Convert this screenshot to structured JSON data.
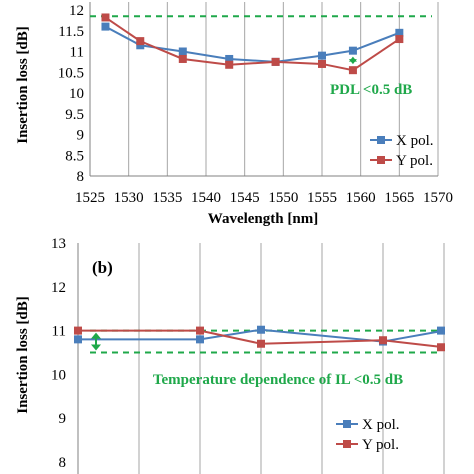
{
  "chart_data": [
    {
      "type": "line",
      "panel_label": "",
      "xlabel": "Wavelength [nm]",
      "ylabel": "Insertion loss [dB]",
      "xlim": [
        1525,
        1570
      ],
      "ylim": [
        8,
        12
      ],
      "xticks": [
        "1525",
        "1530",
        "1535",
        "1540",
        "1545",
        "1550",
        "1555",
        "1560",
        "1565",
        "1570"
      ],
      "yticks": [
        "8",
        "8.5",
        "9",
        "9.5",
        "10",
        "10.5",
        "11",
        "11.5",
        "12"
      ],
      "grid": "vertical",
      "series": [
        {
          "name": "X pol.",
          "color": "#4a7ebb",
          "marker": "square",
          "x": [
            1527,
            1531.5,
            1537,
            1543,
            1549,
            1555,
            1559,
            1565
          ],
          "y": [
            11.6,
            11.15,
            11.0,
            10.82,
            10.75,
            10.9,
            11.02,
            11.45
          ]
        },
        {
          "name": "Y pol.",
          "color": "#be4b48",
          "marker": "square",
          "x": [
            1527,
            1531.5,
            1537,
            1543,
            1549,
            1555,
            1559,
            1565
          ],
          "y": [
            11.82,
            11.25,
            10.82,
            10.68,
            10.75,
            10.7,
            10.55,
            11.3
          ]
        }
      ],
      "reference_lines": [
        11.85
      ],
      "annotation": "PDL <0.5 dB",
      "legend": "bottom-right"
    },
    {
      "type": "line",
      "panel_label": "(b)",
      "xlabel": "",
      "ylabel": "Insertion loss [dB]",
      "ylim": [
        8,
        13
      ],
      "yticks": [
        "8",
        "9",
        "10",
        "11",
        "12",
        "13"
      ],
      "grid": "vertical",
      "series": [
        {
          "name": "X pol.",
          "color": "#4a7ebb",
          "marker": "square",
          "x": [
            0,
            2,
            3,
            5,
            6
          ],
          "y": [
            10.8,
            10.8,
            11.02,
            10.75,
            11.0
          ]
        },
        {
          "name": "Y pol.",
          "color": "#be4b48",
          "marker": "square",
          "x": [
            0,
            2,
            3,
            5,
            6
          ],
          "y": [
            11.0,
            11.0,
            10.7,
            10.78,
            10.62
          ]
        }
      ],
      "reference_lines": [
        11.0,
        10.5
      ],
      "annotation": "Temperature dependence of IL <0.5 dB",
      "legend": "bottom-right"
    }
  ],
  "colors": {
    "x_series": "#4a7ebb",
    "y_series": "#be4b48",
    "reference": "#1fa84a",
    "grid": "#a6a6a6"
  }
}
